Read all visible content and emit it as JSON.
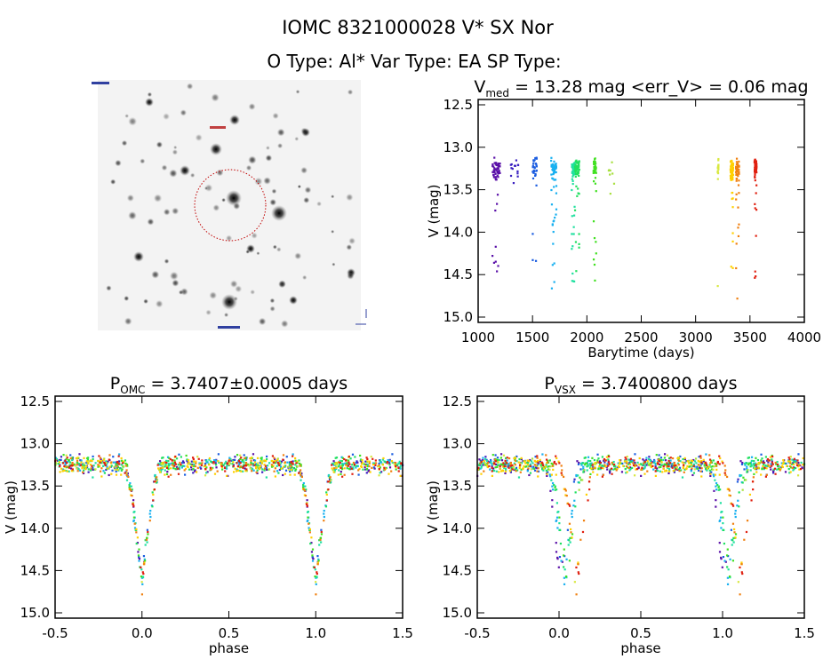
{
  "header": {
    "title": "IOMC 8321000028    V* SX Nor",
    "subtitle": "O Type: Al*  Var Type: EA  SP Type:"
  },
  "chart_data": [
    {
      "type": "scatter",
      "name": "light-curve",
      "title_main": "V",
      "title_sub": "med",
      "title_rest": " = 13.28 mag <err_V> = 0.06 mag",
      "xlabel": "Barytime (days)",
      "ylabel": "V (mag)",
      "xlim": [
        1000,
        4000
      ],
      "ylim": [
        12.5,
        15.0
      ],
      "xticks": [
        "1000",
        "1500",
        "2000",
        "2500",
        "3000",
        "3500",
        "4000"
      ],
      "yticks": [
        "12.5",
        "13.0",
        "13.5",
        "14.0",
        "14.5",
        "15.0"
      ],
      "median_mag": 13.28,
      "mean_err": 0.06
    },
    {
      "type": "scatter",
      "name": "phase-omc",
      "title_main": "P",
      "title_sub": "OMC",
      "title_rest": " = 3.7407±0.0005 days",
      "period": 3.7407,
      "xlabel": "phase",
      "ylabel": "V (mag)",
      "xlim": [
        -0.5,
        1.5
      ],
      "ylim": [
        12.5,
        15.0
      ],
      "xticks": [
        "-0.5",
        "0.0",
        "0.5",
        "1.0",
        "1.5"
      ],
      "yticks": [
        "12.5",
        "13.0",
        "13.5",
        "14.0",
        "14.5",
        "15.0"
      ]
    },
    {
      "type": "scatter",
      "name": "phase-vsx",
      "title_main": "P",
      "title_sub": "VSX",
      "title_rest": " = 3.7400800 days",
      "period": 3.74008,
      "xlabel": "phase",
      "ylabel": "V (mag)",
      "xlim": [
        -0.5,
        1.5
      ],
      "ylim": [
        12.5,
        15.0
      ],
      "xticks": [
        "-0.5",
        "0.0",
        "0.5",
        "1.0",
        "1.5"
      ],
      "yticks": [
        "12.5",
        "13.0",
        "13.5",
        "14.0",
        "14.5",
        "15.0"
      ]
    }
  ],
  "seasons": [
    {
      "t": [
        1130,
        1200
      ],
      "n": 60,
      "color": "#5a10a8"
    },
    {
      "t": [
        1300,
        1370
      ],
      "n": 14,
      "color": "#3a20c0"
    },
    {
      "t": [
        1500,
        1540
      ],
      "n": 30,
      "color": "#1a5ce0"
    },
    {
      "t": [
        1670,
        1720
      ],
      "n": 60,
      "color": "#18b0f0"
    },
    {
      "t": [
        1860,
        1890
      ],
      "n": 70,
      "color": "#20e0a0"
    },
    {
      "t": [
        1890,
        1930
      ],
      "n": 70,
      "color": "#20e060"
    },
    {
      "t": [
        2060,
        2085
      ],
      "n": 45,
      "color": "#40e020"
    },
    {
      "t": [
        2200,
        2250
      ],
      "n": 8,
      "color": "#a8e040"
    },
    {
      "t": [
        3200,
        3210
      ],
      "n": 18,
      "color": "#d8e840"
    },
    {
      "t": [
        3320,
        3345
      ],
      "n": 80,
      "color": "#ffd000"
    },
    {
      "t": [
        3370,
        3400
      ],
      "n": 50,
      "color": "#f08010"
    },
    {
      "t": [
        3540,
        3560
      ],
      "n": 60,
      "color": "#e02010"
    }
  ],
  "model": {
    "base_mag": 13.25,
    "scatter": 0.11,
    "eclipse_depth": 1.4,
    "eclipse_halfwidth": 0.1,
    "epoch": 1000.0
  }
}
